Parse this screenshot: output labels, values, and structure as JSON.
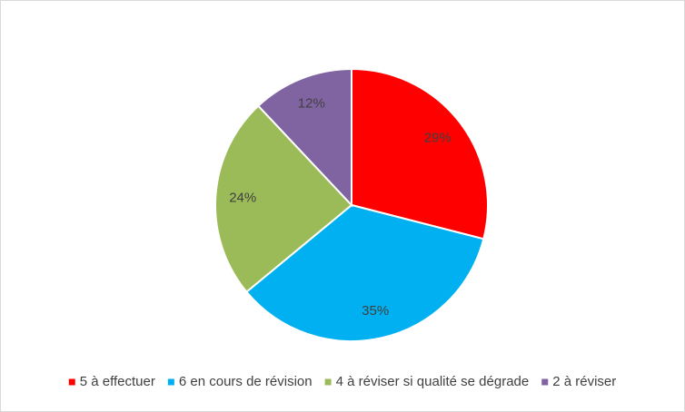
{
  "chart_data": {
    "type": "pie",
    "categories": [
      "5 à effectuer",
      "6 en cours de révision",
      "4 à réviser si qualité se dégrade",
      "2 à réviser"
    ],
    "values": [
      29,
      35,
      24,
      12
    ],
    "value_labels": [
      "29%",
      "35%",
      "24%",
      "12%"
    ],
    "colors": [
      "#ff0000",
      "#00b0f0",
      "#9bbb59",
      "#8064a2"
    ],
    "legend": "bottom"
  }
}
